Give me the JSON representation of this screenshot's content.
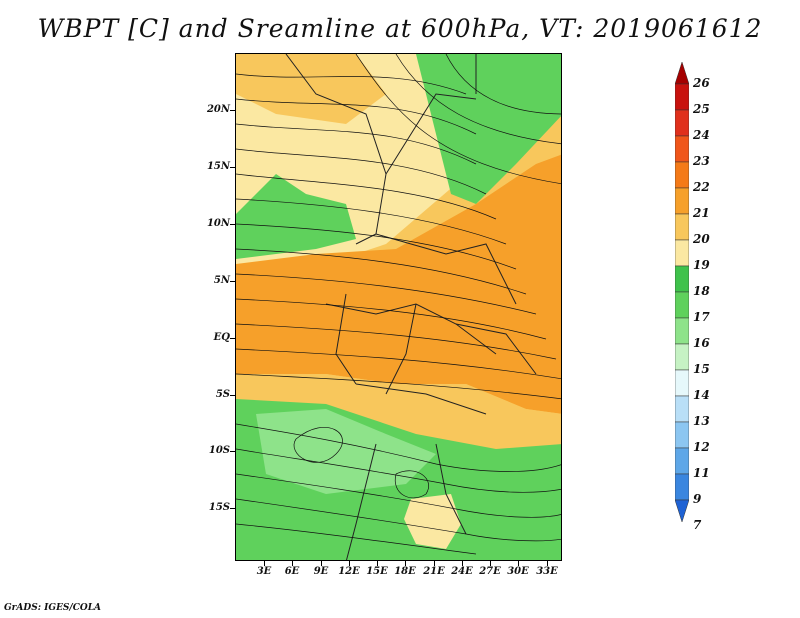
{
  "title": "WBPT [C] and Sreamline at 600hPa, VT: 2019061612",
  "footer": "GrADS: IGES/COLA",
  "map": {
    "lat_labels": [
      "20N",
      "15N",
      "10N",
      "5N",
      "EQ",
      "5S",
      "10S",
      "15S"
    ],
    "lon_labels": [
      "3E",
      "6E",
      "9E",
      "12E",
      "15E",
      "18E",
      "21E",
      "24E",
      "27E",
      "30E",
      "33E"
    ]
  },
  "colorbar": {
    "levels": [
      "26",
      "25",
      "24",
      "23",
      "22",
      "21",
      "20",
      "19",
      "18",
      "17",
      "16",
      "15",
      "14",
      "13",
      "12",
      "11",
      "9",
      "7"
    ],
    "colors": [
      "#a50000",
      "#c8120e",
      "#e0301c",
      "#f0561a",
      "#f47a18",
      "#f6a02a",
      "#f8c75c",
      "#fbe8a2",
      "#3fc24b",
      "#5fd15c",
      "#8ee38a",
      "#c6f2c4",
      "#e6f8fb",
      "#b9dff7",
      "#8cc6f1",
      "#5ea7e8",
      "#3a86df",
      "#1e62d4"
    ]
  }
}
